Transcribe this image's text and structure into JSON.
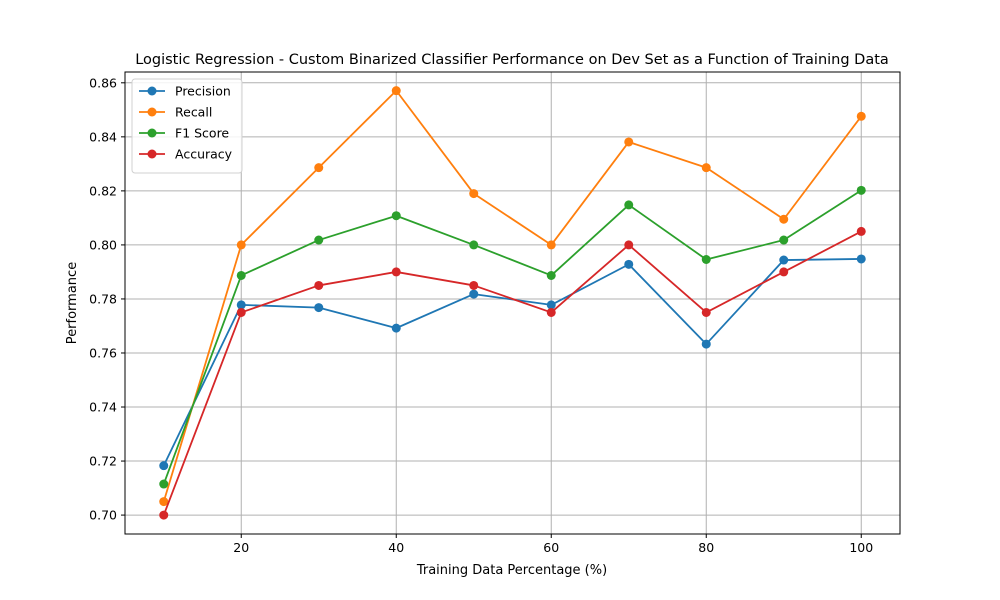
{
  "chart_data": {
    "type": "line",
    "title": "Logistic Regression - Custom Binarized Classifier Performance on Dev Set as a Function of Training Data",
    "xlabel": "Training Data Percentage (%)",
    "ylabel": "Performance",
    "x": [
      10,
      20,
      30,
      40,
      50,
      60,
      70,
      80,
      90,
      100
    ],
    "xlim": [
      5,
      105
    ],
    "ylim": [
      0.693,
      0.864
    ],
    "xticks": [
      20,
      40,
      60,
      80,
      100
    ],
    "xtick_labels": [
      "20",
      "40",
      "60",
      "80",
      "100"
    ],
    "yticks": [
      0.7,
      0.72,
      0.74,
      0.76,
      0.78,
      0.8,
      0.82,
      0.84,
      0.86
    ],
    "ytick_labels": [
      "0.70",
      "0.72",
      "0.74",
      "0.76",
      "0.78",
      "0.80",
      "0.82",
      "0.84",
      "0.86"
    ],
    "grid": true,
    "legend_position": "upper left",
    "series": [
      {
        "name": "Precision",
        "color": "#1f77b4",
        "values": [
          0.7183,
          0.7778,
          0.7768,
          0.7692,
          0.7818,
          0.7778,
          0.7928,
          0.7633,
          0.7944,
          0.7948
        ]
      },
      {
        "name": "Recall",
        "color": "#ff7f0e",
        "values": [
          0.705,
          0.8,
          0.8286,
          0.8571,
          0.819,
          0.8,
          0.8381,
          0.8286,
          0.8095,
          0.8476
        ]
      },
      {
        "name": "F1 Score",
        "color": "#2ca02c",
        "values": [
          0.7115,
          0.7887,
          0.8018,
          0.8108,
          0.8,
          0.7887,
          0.8148,
          0.7946,
          0.8018,
          0.8202
        ]
      },
      {
        "name": "Accuracy",
        "color": "#d62728",
        "values": [
          0.7,
          0.775,
          0.785,
          0.79,
          0.785,
          0.775,
          0.8,
          0.775,
          0.79,
          0.805
        ]
      }
    ]
  }
}
